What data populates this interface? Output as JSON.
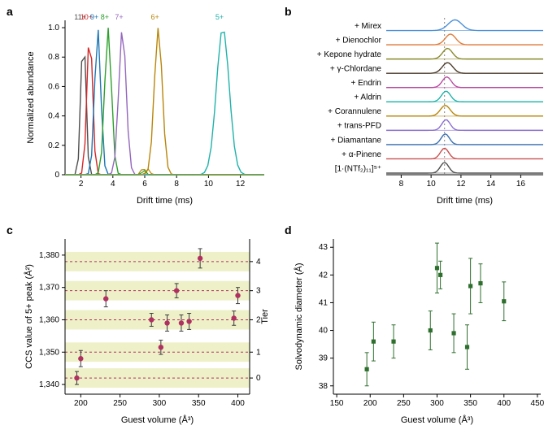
{
  "labels": {
    "a": "a",
    "b": "b",
    "c": "c",
    "d": "d"
  },
  "panel_a": {
    "type": "line",
    "xlabel": "Drift time (ms)",
    "ylabel": "Normalized abundance",
    "xlim": [
      1,
      13.5
    ],
    "ylim": [
      0,
      1.05
    ],
    "xticks": [
      2,
      4,
      6,
      8,
      10,
      12
    ],
    "yticks": [
      0,
      0.2,
      0.4,
      0.6,
      0.8,
      1.0
    ],
    "background": "#ffffff",
    "charges": [
      {
        "label": "11+",
        "color": "#4f4f4f",
        "x": 2.15
      },
      {
        "label": "10+",
        "color": "#d62728",
        "x": 2.55
      },
      {
        "label": "9+",
        "color": "#1f77b4",
        "x": 3.05
      },
      {
        "label": "8+",
        "color": "#2ca02c",
        "x": 3.7
      },
      {
        "label": "7+",
        "color": "#9467bd",
        "x": 4.6
      },
      {
        "label": "6+",
        "color": "#b8860b",
        "x": 6.85
      },
      {
        "label": "5+",
        "color": "#20b2aa",
        "x": 10.9
      }
    ],
    "small_bumps": [
      {
        "color": "#b8860b",
        "x": 5.9,
        "h": 0.05
      },
      {
        "color": "#b8860b",
        "x": 6.2,
        "h": 0.04
      },
      {
        "color": "#2ca02c",
        "x": 5.95,
        "h": 0.03
      }
    ]
  },
  "panel_b": {
    "type": "stacked-line",
    "xlabel": "Drift time (ms)",
    "xlim": [
      7,
      17.5
    ],
    "xticks": [
      8,
      10,
      12,
      14,
      16
    ],
    "dash_x": 10.9,
    "rows": [
      {
        "label": "+ Mirex",
        "color": "#4a90d9",
        "center": 11.6,
        "width": 0.9
      },
      {
        "label": "+ Dienochlor",
        "color": "#e07b3a",
        "center": 11.3,
        "width": 0.7
      },
      {
        "label": "+ Kepone hydrate",
        "color": "#8a8a2e",
        "center": 11.1,
        "width": 0.65
      },
      {
        "label": "+ γ-Chlordane",
        "color": "#4a3a2a",
        "center": 11.1,
        "width": 0.7
      },
      {
        "label": "+ Endrin",
        "color": "#b84aa0",
        "center": 11.05,
        "width": 0.6
      },
      {
        "label": "+ Aldrin",
        "color": "#20b2aa",
        "center": 11.0,
        "width": 0.6
      },
      {
        "label": "+ Corannulene",
        "color": "#b8860b",
        "center": 10.95,
        "width": 0.65
      },
      {
        "label": "+ trans-PFD",
        "color": "#8a6fd1",
        "center": 11.0,
        "width": 0.55
      },
      {
        "label": "+ Diamantane",
        "color": "#3a6fb0",
        "center": 10.95,
        "width": 0.55
      },
      {
        "label": "+ α-Pinene",
        "color": "#c94f4f",
        "center": 10.9,
        "width": 0.55
      },
      {
        "label": "[1·(NTf₂)₁₁]⁵⁺",
        "color": "#4f4f4f",
        "center": 10.9,
        "width": 0.55
      }
    ]
  },
  "panel_c": {
    "type": "scatter",
    "xlabel": "Guest volume (Å³)",
    "ylabel": "CCS value of 5+ peak (Å²)",
    "rlabel": "Tier",
    "xlim": [
      180,
      415
    ],
    "ylim": [
      1337,
      1385
    ],
    "xticks": [
      200,
      250,
      300,
      350,
      400
    ],
    "yticks": [
      1340,
      1350,
      1360,
      1370,
      1380
    ],
    "tiers": [
      {
        "y": 1342,
        "label": "0"
      },
      {
        "y": 1350,
        "label": "1"
      },
      {
        "y": 1360,
        "label": "2"
      },
      {
        "y": 1369,
        "label": "3"
      },
      {
        "y": 1378,
        "label": "4"
      }
    ],
    "band_half": 3.0,
    "point_color": "#b03060",
    "points": [
      {
        "x": 195,
        "y": 1342,
        "err": 2
      },
      {
        "x": 200,
        "y": 1348,
        "err": 2.5
      },
      {
        "x": 232,
        "y": 1366.5,
        "err": 2.5
      },
      {
        "x": 290,
        "y": 1360,
        "err": 2
      },
      {
        "x": 302,
        "y": 1351.5,
        "err": 2.2
      },
      {
        "x": 310,
        "y": 1359,
        "err": 2.5
      },
      {
        "x": 322,
        "y": 1369,
        "err": 2.2
      },
      {
        "x": 328,
        "y": 1359,
        "err": 2.5
      },
      {
        "x": 338,
        "y": 1359.5,
        "err": 2.5
      },
      {
        "x": 352,
        "y": 1379,
        "err": 3
      },
      {
        "x": 395,
        "y": 1360.5,
        "err": 2.2
      },
      {
        "x": 400,
        "y": 1367.5,
        "err": 2.5
      }
    ]
  },
  "panel_d": {
    "type": "scatter",
    "xlabel": "Guest volume (Å³)",
    "ylabel": "Solvodynamic diameter (Å)",
    "xlim": [
      145,
      455
    ],
    "ylim": [
      37.7,
      43.3
    ],
    "xticks": [
      150,
      200,
      250,
      300,
      350,
      400,
      450
    ],
    "yticks": [
      38,
      39,
      40,
      41,
      42,
      43
    ],
    "point_color": "#2e6f2e",
    "points": [
      {
        "x": 195,
        "y": 38.6,
        "err": 0.6
      },
      {
        "x": 205,
        "y": 39.6,
        "err": 0.7
      },
      {
        "x": 235,
        "y": 39.6,
        "err": 0.6
      },
      {
        "x": 290,
        "y": 40.0,
        "err": 0.7
      },
      {
        "x": 300,
        "y": 42.25,
        "err": 0.9
      },
      {
        "x": 305,
        "y": 42.0,
        "err": 0.5
      },
      {
        "x": 325,
        "y": 39.9,
        "err": 0.7
      },
      {
        "x": 345,
        "y": 39.4,
        "err": 0.8
      },
      {
        "x": 350,
        "y": 41.6,
        "err": 1.0
      },
      {
        "x": 365,
        "y": 41.7,
        "err": 0.7
      },
      {
        "x": 400,
        "y": 41.05,
        "err": 0.7
      }
    ]
  }
}
